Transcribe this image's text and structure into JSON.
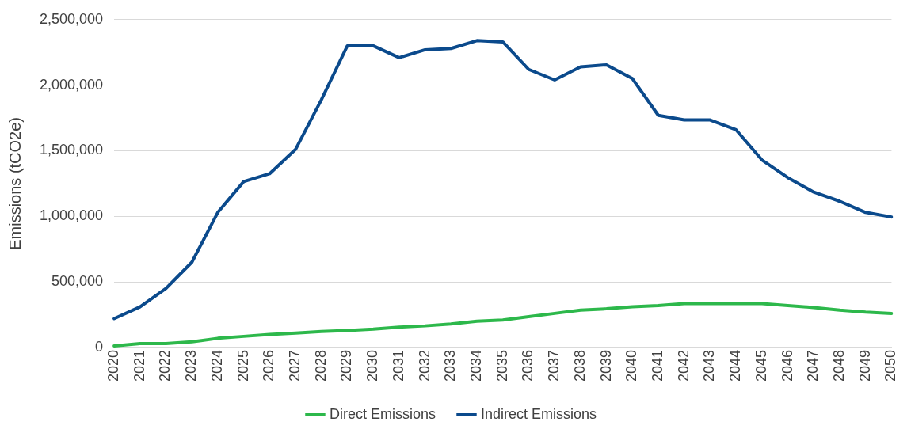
{
  "chart_data": {
    "type": "line",
    "ylabel": "Emissions (tCO2e)",
    "categories": [
      "2020",
      "2021",
      "2022",
      "2023",
      "2024",
      "2025",
      "2026",
      "2027",
      "2028",
      "2029",
      "2030",
      "2031",
      "2032",
      "2033",
      "2034",
      "2035",
      "2036",
      "2037",
      "2038",
      "2039",
      "2040",
      "2041",
      "2042",
      "2043",
      "2044",
      "2045",
      "2046",
      "2047",
      "2048",
      "2049",
      "2050"
    ],
    "series": [
      {
        "name": "Direct Emissions",
        "color": "#2db84b",
        "values": [
          12000,
          30000,
          30000,
          43000,
          70000,
          85000,
          100000,
          110000,
          122000,
          130000,
          140000,
          155000,
          165000,
          180000,
          200000,
          210000,
          235000,
          260000,
          285000,
          295000,
          310000,
          320000,
          335000,
          335000,
          335000,
          335000,
          320000,
          305000,
          285000,
          270000,
          260000
        ]
      },
      {
        "name": "Indirect Emissions",
        "color": "#0b4a8c",
        "values": [
          220000,
          310000,
          450000,
          650000,
          1030000,
          1265000,
          1325000,
          1510000,
          1890000,
          2300000,
          2300000,
          2210000,
          2270000,
          2280000,
          2340000,
          2330000,
          2120000,
          2040000,
          2140000,
          2155000,
          2050000,
          1770000,
          1735000,
          1735000,
          1660000,
          1430000,
          1295000,
          1185000,
          1115000,
          1030000,
          995000
        ]
      }
    ],
    "ylim": [
      0,
      2500000
    ],
    "yticks": [
      {
        "value": 0,
        "label": "0"
      },
      {
        "value": 500000,
        "label": "500,000"
      },
      {
        "value": 1000000,
        "label": "1,000,000"
      },
      {
        "value": 1500000,
        "label": "1,500,000"
      },
      {
        "value": 2000000,
        "label": "2,000,000"
      },
      {
        "value": 2500000,
        "label": "2,500,000"
      }
    ],
    "grid": "y",
    "legend": "bottom",
    "marker": "none",
    "line_style": "solid"
  }
}
